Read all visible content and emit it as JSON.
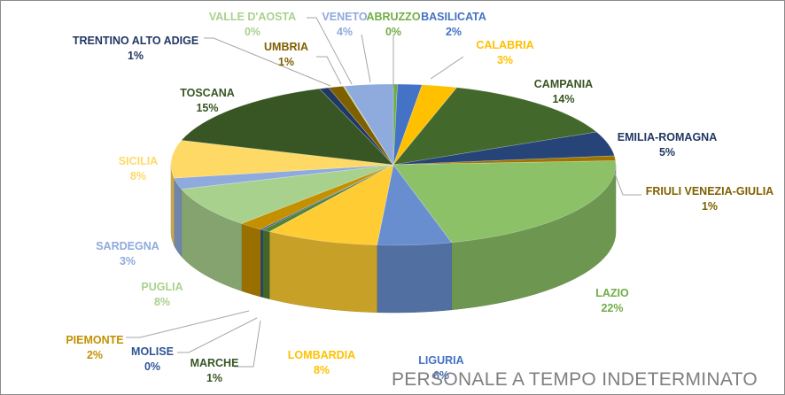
{
  "chart_data": {
    "type": "pie",
    "style": "3d",
    "title": "PERSONALE A TEMPO INDETERMINATO",
    "series": [
      {
        "name": "ABRUZZO",
        "label": "0%",
        "value": 0.3,
        "color": "#70ad47"
      },
      {
        "name": "BASILICATA",
        "label": "2%",
        "value": 1.8,
        "color": "#4472c4"
      },
      {
        "name": "CALABRIA",
        "label": "3%",
        "value": 2.6,
        "color": "#ffc000"
      },
      {
        "name": "CAMPANIA",
        "label": "14%",
        "value": 14.0,
        "color": "#43682b"
      },
      {
        "name": "EMILIA-ROMAGNA",
        "label": "5%",
        "value": 5.0,
        "color": "#264478"
      },
      {
        "name": "FRIULI VENEZIA-GIULIA",
        "label": "1%",
        "value": 1.0,
        "color": "#9e7400"
      },
      {
        "name": "LAZIO",
        "label": "22%",
        "value": 22.0,
        "color": "#8cc168"
      },
      {
        "name": "LIGURIA",
        "label": "6%",
        "value": 5.5,
        "color": "#698ed0"
      },
      {
        "name": "LOMBARDIA",
        "label": "8%",
        "value": 8.4,
        "color": "#ffcd33"
      },
      {
        "name": "MARCHE",
        "label": "1%",
        "value": 0.6,
        "color": "#548235"
      },
      {
        "name": "MOLISE",
        "label": "0%",
        "value": 0.2,
        "color": "#2f5597"
      },
      {
        "name": "PIEMONTE",
        "label": "2%",
        "value": 1.8,
        "color": "#c49000"
      },
      {
        "name": "PUGLIA",
        "label": "8%",
        "value": 8.3,
        "color": "#a9d18e"
      },
      {
        "name": "SARDEGNA",
        "label": "3%",
        "value": 2.3,
        "color": "#8faadc"
      },
      {
        "name": "SICILIA",
        "label": "8%",
        "value": 7.7,
        "color": "#ffd966"
      },
      {
        "name": "TOSCANA",
        "label": "15%",
        "value": 15.0,
        "color": "#375623"
      },
      {
        "name": "TRENTINO ALTO ADIGE",
        "label": "1%",
        "value": 0.7,
        "color": "#203864"
      },
      {
        "name": "UMBRIA",
        "label": "1%",
        "value": 1.1,
        "color": "#7f6000"
      },
      {
        "name": "VALLE D'AOSTA",
        "label": "0%",
        "value": 0.1,
        "color": "#a9d18e"
      },
      {
        "name": "VENETO",
        "label": "4%",
        "value": 3.6,
        "color": "#8faadc"
      }
    ]
  }
}
